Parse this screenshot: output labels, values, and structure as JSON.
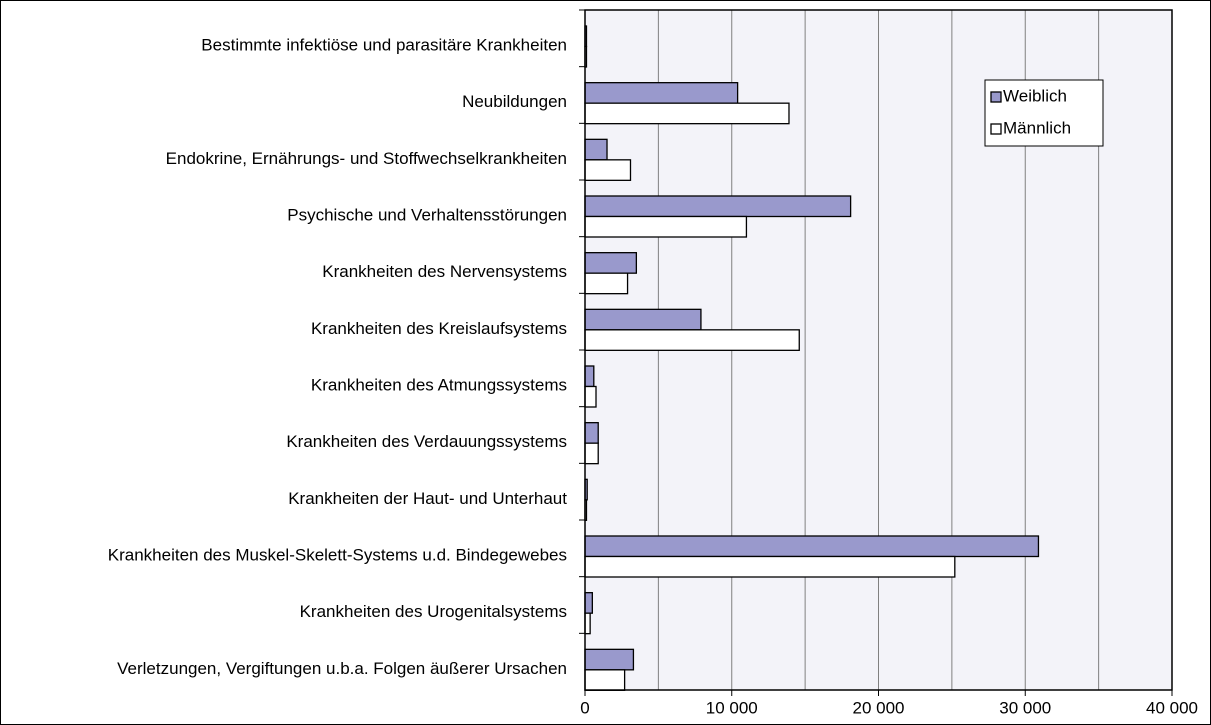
{
  "chart_data": {
    "type": "hbar",
    "categories": [
      "Bestimmte infektiöse und parasitäre Krankheiten",
      "Neubildungen",
      "Endokrine, Ernährungs- und Stoffwechselkrankheiten",
      "Psychische und Verhaltensstörungen",
      "Krankheiten des Nervensystems",
      "Krankheiten des Kreislaufsystems",
      "Krankheiten des Atmungssystems",
      "Krankheiten des Verdauungssystems",
      "Krankheiten der Haut- und Unterhaut",
      "Krankheiten des Muskel-Skelett-Systems u.d. Bindegewebes",
      "Krankheiten des Urogenitalsystems",
      "Verletzungen, Vergiftungen u.b.a. Folgen äußerer Ursachen"
    ],
    "series": [
      {
        "name": "Weiblich",
        "color": "#9999cc",
        "values": [
          100,
          10400,
          1500,
          18100,
          3500,
          7900,
          600,
          900,
          150,
          30900,
          500,
          3300
        ]
      },
      {
        "name": "Männlich",
        "color": "#ffffff",
        "values": [
          100,
          13900,
          3100,
          11000,
          2900,
          14600,
          750,
          900,
          100,
          25200,
          350,
          2700
        ]
      }
    ],
    "xlim": [
      0,
      40000
    ],
    "xticks": [
      0,
      {
        "value": 10000,
        "label": "10 000"
      },
      {
        "value": 20000,
        "label": "20 000"
      },
      {
        "value": 30000,
        "label": "30 000"
      },
      {
        "value": 40000,
        "label": "40 000"
      }
    ],
    "xgrid": [
      5000,
      10000,
      15000,
      20000,
      25000,
      30000,
      35000
    ],
    "legend": "top-right"
  }
}
